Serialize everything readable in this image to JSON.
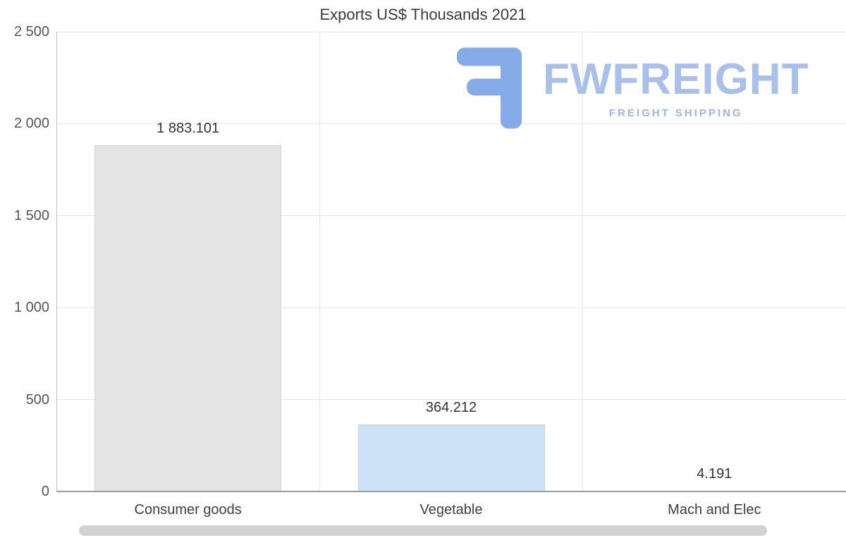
{
  "chart_data": {
    "type": "bar",
    "title": "Exports US$ Thousands 2021",
    "categories": [
      "Consumer goods",
      "Vegetable",
      "Mach and Elec"
    ],
    "values": [
      1883.101,
      364.212,
      4.191
    ],
    "value_labels": [
      "1 883.101",
      "364.212",
      "4.191"
    ],
    "xlabel": "",
    "ylabel": "",
    "ylim": [
      0,
      2500
    ],
    "yticks": [
      0,
      500,
      1000,
      1500,
      2000,
      2500
    ],
    "ytick_labels": [
      "0",
      "500",
      "1 000",
      "1 500",
      "2 000",
      "2 500"
    ],
    "grid": true,
    "legend": false,
    "bar_colors": [
      "#e4e4e4",
      "#cde1f7",
      "#cde1f7"
    ],
    "bar_borders": [
      "#d6d6d6",
      "#bcd7f2",
      "#bcd7f2"
    ]
  },
  "watermark": {
    "brand": "FWFREIGHT",
    "tagline": "FREIGHT SHIPPING",
    "brand_color": "#a9c1ea"
  }
}
